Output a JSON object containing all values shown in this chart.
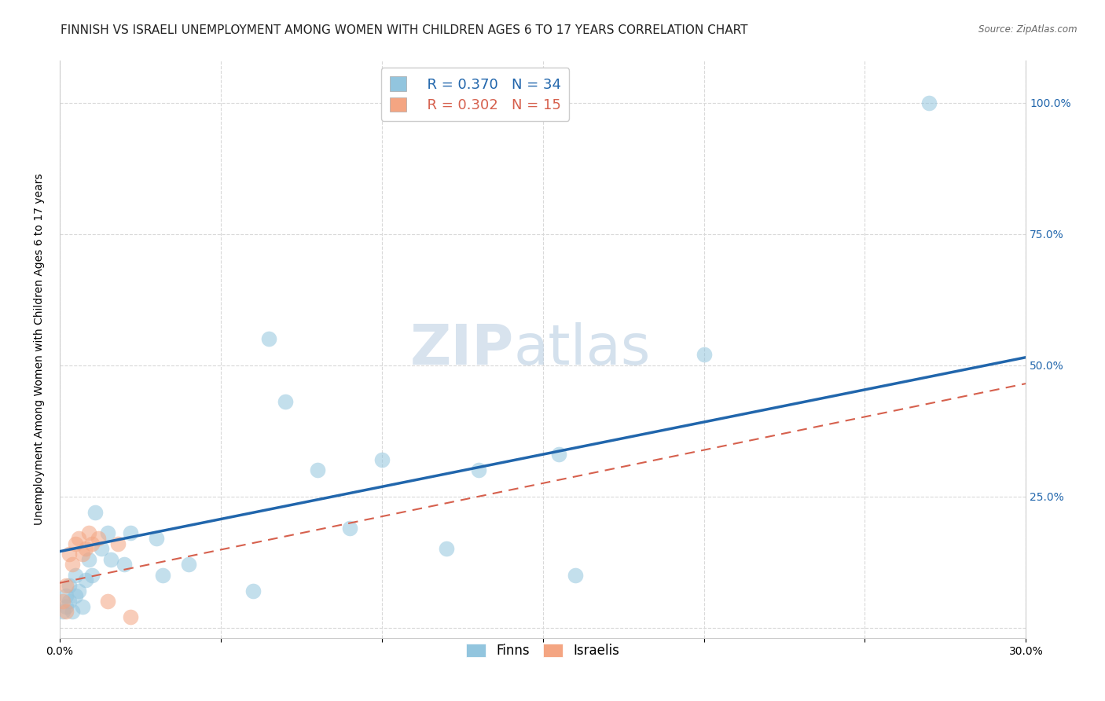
{
  "title": "FINNISH VS ISRAELI UNEMPLOYMENT AMONG WOMEN WITH CHILDREN AGES 6 TO 17 YEARS CORRELATION CHART",
  "source": "Source: ZipAtlas.com",
  "ylabel": "Unemployment Among Women with Children Ages 6 to 17 years",
  "xlim": [
    0.0,
    0.3
  ],
  "ylim": [
    -0.02,
    1.08
  ],
  "xticks": [
    0.0,
    0.05,
    0.1,
    0.15,
    0.2,
    0.25,
    0.3
  ],
  "xticklabels": [
    "0.0%",
    "",
    "",
    "",
    "",
    "",
    "30.0%"
  ],
  "yticks_right": [
    0.0,
    0.25,
    0.5,
    0.75,
    1.0
  ],
  "yticklabels_right": [
    "",
    "25.0%",
    "50.0%",
    "75.0%",
    "100.0%"
  ],
  "legend_finn_R": "R = 0.370",
  "legend_finn_N": "N = 34",
  "legend_isr_R": "R = 0.302",
  "legend_isr_N": "N = 15",
  "finn_color": "#92c5de",
  "isr_color": "#f4a582",
  "finn_line_color": "#2166ac",
  "isr_line_color": "#d6604d",
  "watermark_zip": "ZIP",
  "watermark_atlas": "atlas",
  "finn_scatter_x": [
    0.001,
    0.002,
    0.002,
    0.003,
    0.003,
    0.004,
    0.005,
    0.005,
    0.006,
    0.007,
    0.008,
    0.009,
    0.01,
    0.011,
    0.013,
    0.015,
    0.016,
    0.02,
    0.022,
    0.03,
    0.032,
    0.04,
    0.06,
    0.065,
    0.07,
    0.08,
    0.09,
    0.1,
    0.12,
    0.13,
    0.155,
    0.16,
    0.2,
    0.27
  ],
  "finn_scatter_y": [
    0.03,
    0.04,
    0.06,
    0.05,
    0.08,
    0.03,
    0.06,
    0.1,
    0.07,
    0.04,
    0.09,
    0.13,
    0.1,
    0.22,
    0.15,
    0.18,
    0.13,
    0.12,
    0.18,
    0.17,
    0.1,
    0.12,
    0.07,
    0.55,
    0.43,
    0.3,
    0.19,
    0.32,
    0.15,
    0.3,
    0.33,
    0.1,
    0.52,
    1.0
  ],
  "isr_scatter_x": [
    0.001,
    0.002,
    0.002,
    0.003,
    0.004,
    0.005,
    0.006,
    0.007,
    0.008,
    0.009,
    0.01,
    0.012,
    0.015,
    0.018,
    0.022
  ],
  "isr_scatter_y": [
    0.05,
    0.03,
    0.08,
    0.14,
    0.12,
    0.16,
    0.17,
    0.14,
    0.15,
    0.18,
    0.16,
    0.17,
    0.05,
    0.16,
    0.02
  ],
  "finn_line_x": [
    0.0,
    0.3
  ],
  "finn_line_y": [
    0.145,
    0.515
  ],
  "isr_line_x": [
    0.0,
    0.3
  ],
  "isr_line_y": [
    0.085,
    0.465
  ],
  "bg_color": "#ffffff",
  "grid_color": "#d9d9d9",
  "title_fontsize": 11,
  "axis_label_fontsize": 10,
  "tick_fontsize": 10,
  "right_tick_color": "#2166ac"
}
